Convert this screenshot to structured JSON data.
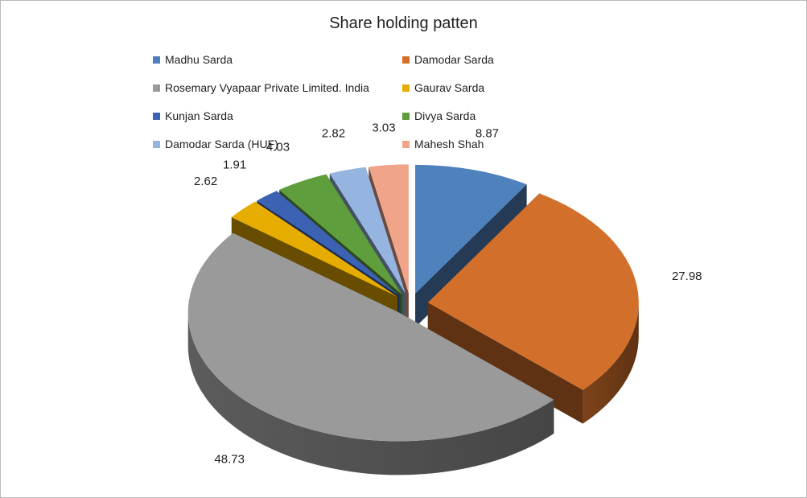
{
  "chart_data": {
    "type": "pie",
    "title": "Share holding patten",
    "legend_position": "top",
    "series": [
      {
        "name": "Madhu Sarda",
        "value": 8.87,
        "color": "#4f81bd"
      },
      {
        "name": "Damodar Sarda",
        "value": 27.98,
        "color": "#d2702b"
      },
      {
        "name": "Rosemary Vyapaar Private Limited. India",
        "value": 48.73,
        "color": "#9a9a9a"
      },
      {
        "name": "Gaurav Sarda",
        "value": 2.62,
        "color": "#e6ac00"
      },
      {
        "name": "Kunjan Sarda",
        "value": 1.91,
        "color": "#3b62b3"
      },
      {
        "name": "Divya Sarda",
        "value": 4.03,
        "color": "#5f9e3c"
      },
      {
        "name": "Damodar Sarda (HUF)",
        "value": 2.82,
        "color": "#95b5e0"
      },
      {
        "name": "Mahesh Shah",
        "value": 3.03,
        "color": "#f0a58a"
      }
    ],
    "labels": [
      "8.87",
      "27.98",
      "48.73",
      "2.62",
      "1.91",
      "4.03",
      "2.82",
      "3.03"
    ]
  }
}
